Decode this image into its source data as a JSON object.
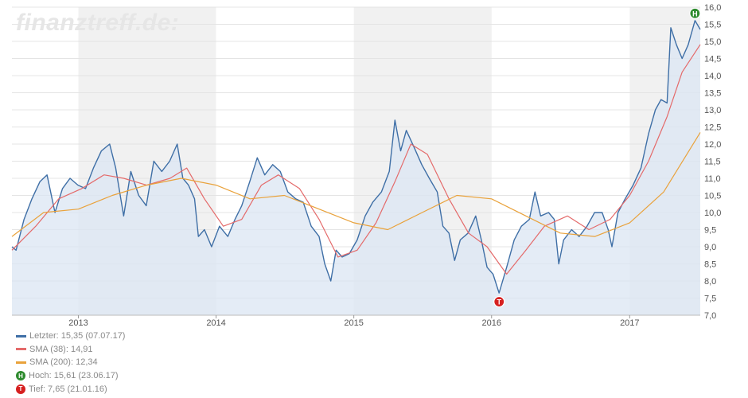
{
  "brand": "finanztreff.de:",
  "colors": {
    "price": "#3f6fa6",
    "sma38": "#e46a6a",
    "sma200": "#e9a23b",
    "area": "#dbe6f3",
    "band": "#f1f1f1",
    "high": "#2e8b2e",
    "low": "#d62020"
  },
  "legend": {
    "last": "Letzter: 15,35 (07.07.17)",
    "sma38": "SMA (38): 14,91",
    "sma200": "SMA (200): 12,34",
    "high": "Hoch: 15,61 (23.06.17)",
    "low": "Tief: 7,65 (21.01.16)",
    "high_marker": "H",
    "low_marker": "T"
  },
  "chart_data": {
    "type": "line",
    "x_range": [
      "2012-07-09",
      "2017-07-07"
    ],
    "ylim": [
      7.0,
      16.0
    ],
    "y_ticks": [
      "16,0",
      "15,5",
      "15,0",
      "14,5",
      "14,0",
      "13,5",
      "13,0",
      "12,5",
      "12,0",
      "11,5",
      "11,0",
      "10,5",
      "10,0",
      "9,5",
      "9,0",
      "8,5",
      "8,0",
      "7,5",
      "7,0"
    ],
    "x_ticks": [
      {
        "label": "2013",
        "date": "2013-01-01"
      },
      {
        "label": "2014",
        "date": "2014-01-01"
      },
      {
        "label": "2015",
        "date": "2015-01-01"
      },
      {
        "label": "2016",
        "date": "2016-01-01"
      },
      {
        "label": "2017",
        "date": "2017-01-01"
      }
    ],
    "shaded_years": [
      "2013",
      "2015",
      "2017"
    ],
    "grid": true,
    "series": [
      {
        "name": "Letzter",
        "points": [
          [
            "2012-07-09",
            9.0
          ],
          [
            "2012-07-20",
            8.9
          ],
          [
            "2012-08-10",
            9.8
          ],
          [
            "2012-08-31",
            10.4
          ],
          [
            "2012-09-21",
            10.9
          ],
          [
            "2012-10-10",
            11.1
          ],
          [
            "2012-10-31",
            10.0
          ],
          [
            "2012-11-20",
            10.7
          ],
          [
            "2012-12-10",
            11.0
          ],
          [
            "2012-12-31",
            10.8
          ],
          [
            "2013-01-20",
            10.7
          ],
          [
            "2013-02-10",
            11.3
          ],
          [
            "2013-03-03",
            11.8
          ],
          [
            "2013-03-25",
            12.0
          ],
          [
            "2013-04-10",
            11.3
          ],
          [
            "2013-05-01",
            9.9
          ],
          [
            "2013-05-20",
            11.2
          ],
          [
            "2013-06-10",
            10.5
          ],
          [
            "2013-06-30",
            10.2
          ],
          [
            "2013-07-20",
            11.5
          ],
          [
            "2013-08-10",
            11.2
          ],
          [
            "2013-08-31",
            11.5
          ],
          [
            "2013-09-20",
            12.0
          ],
          [
            "2013-10-05",
            11.0
          ],
          [
            "2013-10-20",
            10.8
          ],
          [
            "2013-11-05",
            10.4
          ],
          [
            "2013-11-15",
            9.3
          ],
          [
            "2013-12-01",
            9.5
          ],
          [
            "2013-12-20",
            9.0
          ],
          [
            "2014-01-10",
            9.6
          ],
          [
            "2014-02-01",
            9.3
          ],
          [
            "2014-02-20",
            9.8
          ],
          [
            "2014-03-10",
            10.2
          ],
          [
            "2014-03-31",
            10.9
          ],
          [
            "2014-04-20",
            11.6
          ],
          [
            "2014-05-10",
            11.1
          ],
          [
            "2014-05-31",
            11.4
          ],
          [
            "2014-06-20",
            11.2
          ],
          [
            "2014-07-10",
            10.6
          ],
          [
            "2014-07-31",
            10.4
          ],
          [
            "2014-08-20",
            10.3
          ],
          [
            "2014-09-10",
            9.6
          ],
          [
            "2014-10-01",
            9.3
          ],
          [
            "2014-10-16",
            8.5
          ],
          [
            "2014-11-01",
            8.0
          ],
          [
            "2014-11-15",
            8.9
          ],
          [
            "2014-12-01",
            8.7
          ],
          [
            "2014-12-20",
            8.8
          ],
          [
            "2015-01-10",
            9.2
          ],
          [
            "2015-01-31",
            9.9
          ],
          [
            "2015-02-20",
            10.3
          ],
          [
            "2015-03-15",
            10.6
          ],
          [
            "2015-04-05",
            11.2
          ],
          [
            "2015-04-20",
            12.7
          ],
          [
            "2015-05-05",
            11.8
          ],
          [
            "2015-05-20",
            12.4
          ],
          [
            "2015-06-10",
            11.9
          ],
          [
            "2015-06-30",
            11.4
          ],
          [
            "2015-07-20",
            11.0
          ],
          [
            "2015-08-10",
            10.6
          ],
          [
            "2015-08-25",
            9.6
          ],
          [
            "2015-09-10",
            9.4
          ],
          [
            "2015-09-25",
            8.6
          ],
          [
            "2015-10-10",
            9.2
          ],
          [
            "2015-10-31",
            9.4
          ],
          [
            "2015-11-20",
            9.9
          ],
          [
            "2015-12-05",
            9.2
          ],
          [
            "2015-12-20",
            8.4
          ],
          [
            "2016-01-05",
            8.2
          ],
          [
            "2016-01-21",
            7.65
          ],
          [
            "2016-02-10",
            8.4
          ],
          [
            "2016-03-01",
            9.2
          ],
          [
            "2016-03-20",
            9.6
          ],
          [
            "2016-04-10",
            9.8
          ],
          [
            "2016-04-25",
            10.6
          ],
          [
            "2016-05-10",
            9.9
          ],
          [
            "2016-05-31",
            10.0
          ],
          [
            "2016-06-15",
            9.8
          ],
          [
            "2016-06-27",
            8.5
          ],
          [
            "2016-07-10",
            9.2
          ],
          [
            "2016-07-31",
            9.5
          ],
          [
            "2016-08-20",
            9.3
          ],
          [
            "2016-09-10",
            9.6
          ],
          [
            "2016-09-30",
            10.0
          ],
          [
            "2016-10-20",
            10.0
          ],
          [
            "2016-11-05",
            9.5
          ],
          [
            "2016-11-15",
            9.0
          ],
          [
            "2016-12-01",
            10.0
          ],
          [
            "2016-12-20",
            10.4
          ],
          [
            "2017-01-10",
            10.8
          ],
          [
            "2017-01-31",
            11.3
          ],
          [
            "2017-02-20",
            12.3
          ],
          [
            "2017-03-10",
            13.0
          ],
          [
            "2017-03-25",
            13.3
          ],
          [
            "2017-04-10",
            13.2
          ],
          [
            "2017-04-20",
            15.4
          ],
          [
            "2017-05-05",
            14.9
          ],
          [
            "2017-05-20",
            14.5
          ],
          [
            "2017-06-05",
            14.9
          ],
          [
            "2017-06-23",
            15.61
          ],
          [
            "2017-07-07",
            15.35
          ]
        ]
      },
      {
        "name": "SMA (38)",
        "points": [
          [
            "2012-07-09",
            8.9
          ],
          [
            "2012-09-10",
            9.6
          ],
          [
            "2012-11-10",
            10.4
          ],
          [
            "2013-01-10",
            10.7
          ],
          [
            "2013-03-10",
            11.1
          ],
          [
            "2013-05-01",
            11.0
          ],
          [
            "2013-07-01",
            10.8
          ],
          [
            "2013-09-01",
            11.0
          ],
          [
            "2013-10-15",
            11.3
          ],
          [
            "2013-12-01",
            10.4
          ],
          [
            "2014-01-20",
            9.6
          ],
          [
            "2014-03-10",
            9.8
          ],
          [
            "2014-05-01",
            10.8
          ],
          [
            "2014-06-15",
            11.1
          ],
          [
            "2014-08-10",
            10.7
          ],
          [
            "2014-10-01",
            9.8
          ],
          [
            "2014-11-20",
            8.7
          ],
          [
            "2015-01-10",
            8.9
          ],
          [
            "2015-03-01",
            9.7
          ],
          [
            "2015-04-20",
            10.9
          ],
          [
            "2015-06-01",
            12.0
          ],
          [
            "2015-07-15",
            11.7
          ],
          [
            "2015-09-10",
            10.4
          ],
          [
            "2015-11-01",
            9.4
          ],
          [
            "2015-12-20",
            9.0
          ],
          [
            "2016-02-10",
            8.2
          ],
          [
            "2016-04-01",
            8.9
          ],
          [
            "2016-05-20",
            9.6
          ],
          [
            "2016-07-20",
            9.9
          ],
          [
            "2016-09-15",
            9.5
          ],
          [
            "2016-11-10",
            9.8
          ],
          [
            "2017-01-01",
            10.5
          ],
          [
            "2017-02-20",
            11.5
          ],
          [
            "2017-04-10",
            12.8
          ],
          [
            "2017-05-20",
            14.1
          ],
          [
            "2017-07-07",
            14.91
          ]
        ]
      },
      {
        "name": "SMA (200)",
        "points": [
          [
            "2012-07-09",
            9.3
          ],
          [
            "2012-10-01",
            10.0
          ],
          [
            "2013-01-01",
            10.1
          ],
          [
            "2013-04-01",
            10.5
          ],
          [
            "2013-07-01",
            10.8
          ],
          [
            "2013-10-01",
            11.0
          ],
          [
            "2014-01-01",
            10.8
          ],
          [
            "2014-04-01",
            10.4
          ],
          [
            "2014-07-01",
            10.5
          ],
          [
            "2014-10-01",
            10.1
          ],
          [
            "2015-01-01",
            9.7
          ],
          [
            "2015-04-01",
            9.5
          ],
          [
            "2015-07-01",
            10.0
          ],
          [
            "2015-10-01",
            10.5
          ],
          [
            "2016-01-01",
            10.4
          ],
          [
            "2016-04-01",
            9.9
          ],
          [
            "2016-07-01",
            9.4
          ],
          [
            "2016-10-01",
            9.3
          ],
          [
            "2017-01-01",
            9.7
          ],
          [
            "2017-04-01",
            10.6
          ],
          [
            "2017-07-07",
            12.34
          ]
        ]
      }
    ],
    "annotations": [
      {
        "name": "Hoch",
        "date": "2017-06-23",
        "value": 15.61,
        "marker": "H"
      },
      {
        "name": "Tief",
        "date": "2016-01-21",
        "value": 7.65,
        "marker": "T"
      }
    ]
  }
}
